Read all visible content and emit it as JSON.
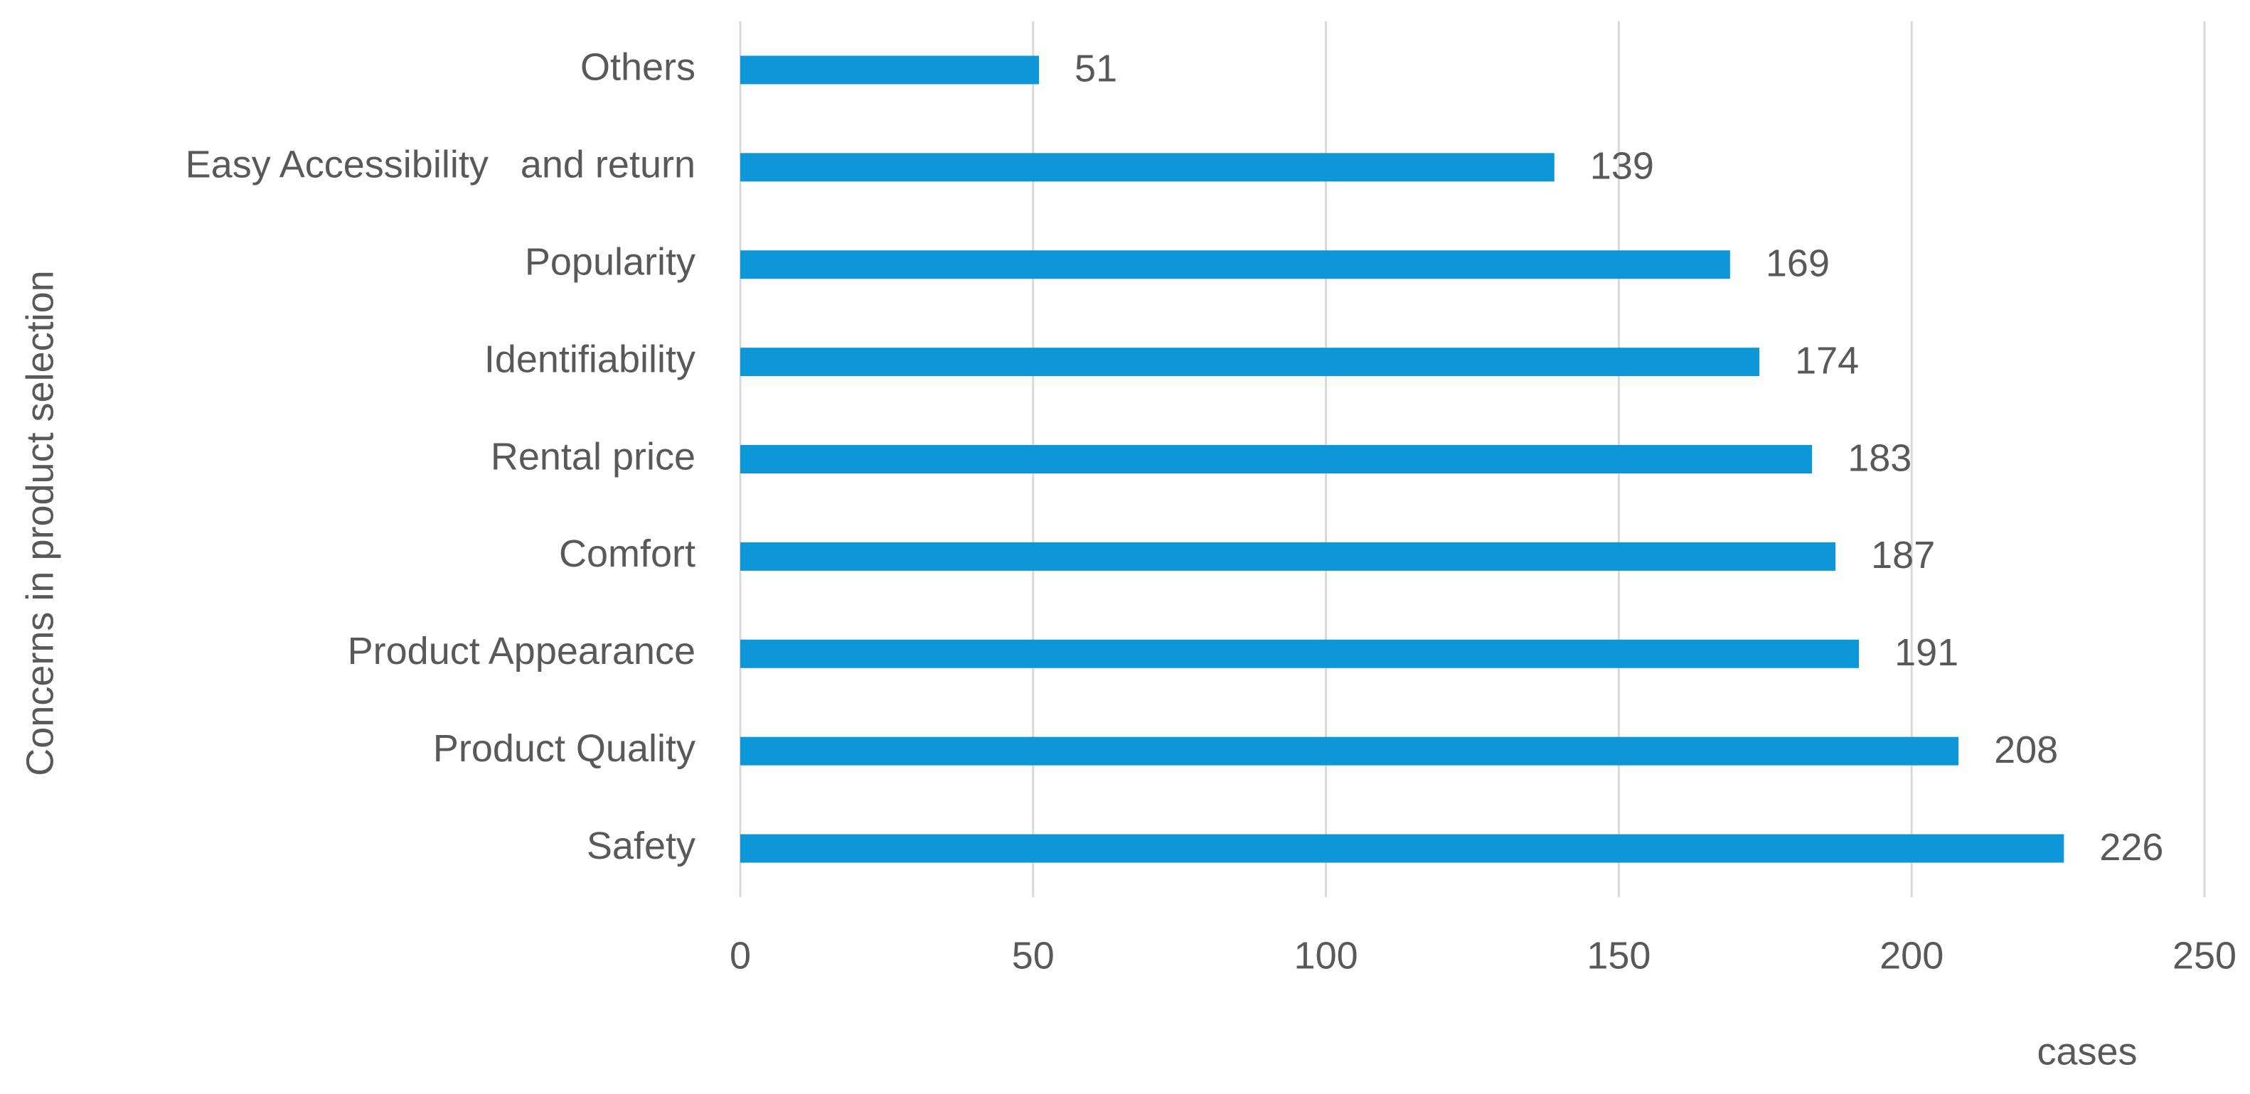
{
  "chart_data": {
    "type": "bar",
    "orientation": "horizontal",
    "x_label": "cases",
    "y_label": "Concerns in product selection",
    "categories": [
      "Others",
      "Easy Accessibility   and return",
      "Popularity",
      "Identifiability",
      "Rental price",
      "Comfort",
      "Product Appearance",
      "Product Quality",
      "Safety"
    ],
    "values": [
      51,
      139,
      169,
      174,
      183,
      187,
      191,
      208,
      226
    ],
    "color": "#0e97d8",
    "xlim": [
      0,
      250
    ],
    "xticks": [
      0,
      50,
      100,
      150,
      200,
      250
    ],
    "grid": true
  }
}
